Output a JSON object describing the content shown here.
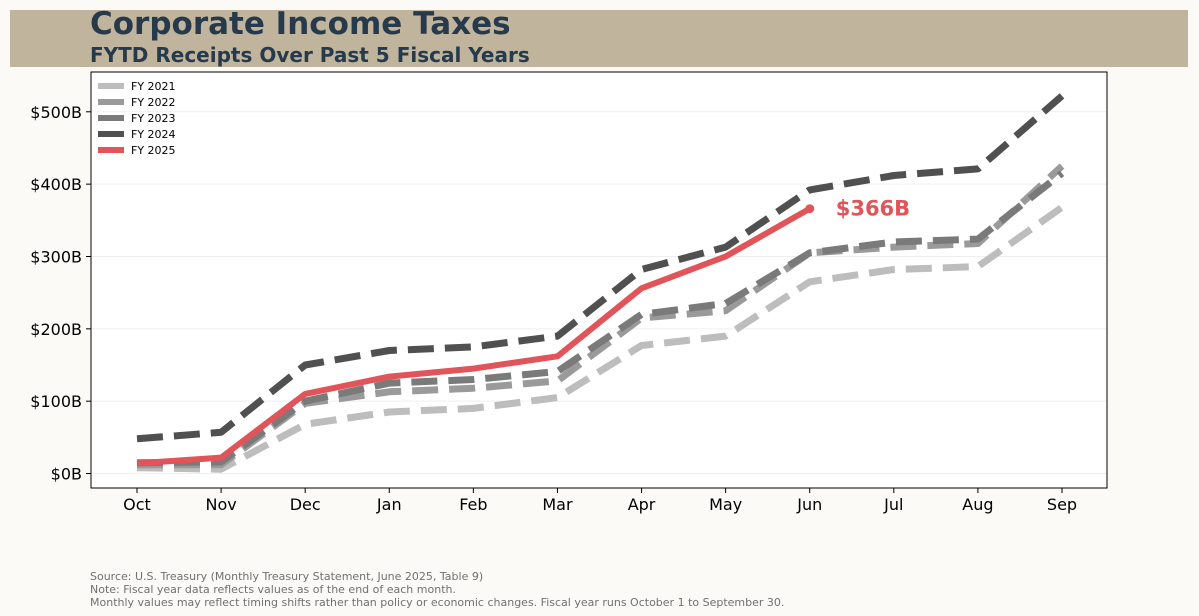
{
  "header": {
    "title": "Corporate Income Taxes",
    "subtitle": "FYTD Receipts Over Past 5 Fiscal Years"
  },
  "footer": {
    "source": "Source: U.S. Treasury (Monthly Treasury Statement, June 2025, Table 9)",
    "note": "Note: Fiscal year data reflects values as of the end of each month.",
    "note2": "Monthly values may reflect timing shifts rather than policy or economic changes. Fiscal year runs October 1 to September 30."
  },
  "colors": {
    "header_band": "#c0b49c",
    "title": "#263a4c",
    "highlight": "#e0545a"
  },
  "chart_data": {
    "type": "line",
    "categories": [
      "Oct",
      "Nov",
      "Dec",
      "Jan",
      "Feb",
      "Mar",
      "Apr",
      "May",
      "Jun",
      "Jul",
      "Aug",
      "Sep"
    ],
    "ylim": [
      -20,
      555
    ],
    "yticks": [
      0,
      100,
      200,
      300,
      400,
      500
    ],
    "ytick_labels": [
      "$0B",
      "$100B",
      "$200B",
      "$300B",
      "$400B",
      "$500B"
    ],
    "grid": true,
    "legend_position": "top-left",
    "series": [
      {
        "name": "FY 2021",
        "color": "#bdbdbd",
        "style": "dashed",
        "values": [
          8,
          6,
          68,
          85,
          90,
          105,
          177,
          190,
          265,
          282,
          286,
          368
        ]
      },
      {
        "name": "FY 2022",
        "color": "#9a9a9a",
        "style": "dashed",
        "values": [
          12,
          12,
          97,
          113,
          118,
          128,
          215,
          225,
          305,
          313,
          318,
          425
        ]
      },
      {
        "name": "FY 2023",
        "color": "#7a7a7a",
        "style": "dashed",
        "values": [
          15,
          16,
          100,
          125,
          130,
          141,
          220,
          235,
          305,
          320,
          324,
          415
        ]
      },
      {
        "name": "FY 2024",
        "color": "#505050",
        "style": "dashed",
        "values": [
          48,
          57,
          150,
          170,
          175,
          190,
          282,
          313,
          392,
          412,
          421,
          522
        ]
      },
      {
        "name": "FY 2025",
        "color": "#e0545a",
        "style": "solid",
        "values": [
          14,
          22,
          110,
          134,
          145,
          162,
          256,
          300,
          366,
          null,
          null,
          null
        ]
      }
    ],
    "annotation": {
      "text": "$366B",
      "x": "Jun",
      "y": 366
    }
  }
}
